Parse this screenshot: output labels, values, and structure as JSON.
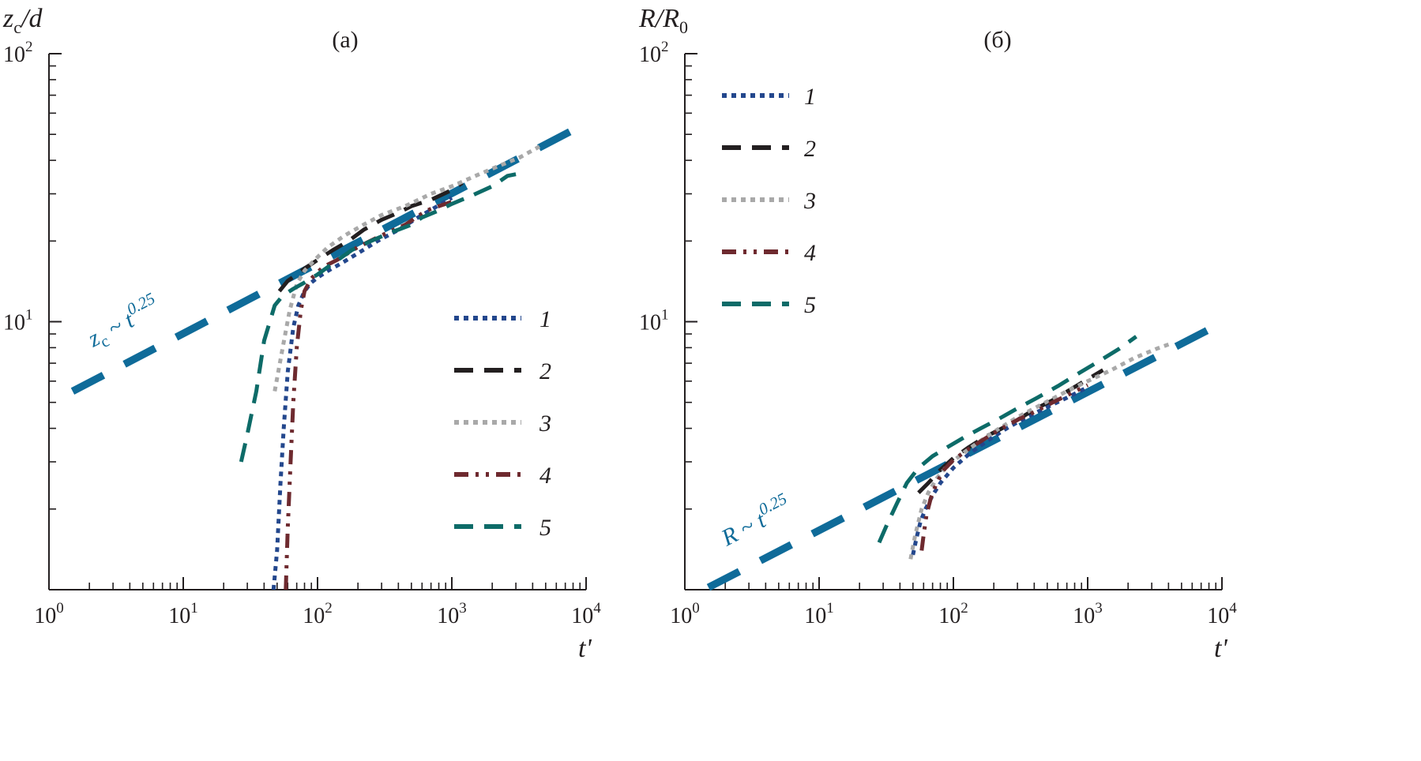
{
  "colors": {
    "axis": "#231f20",
    "1": "#23478d",
    "2": "#231f20",
    "3": "#a9a9a9",
    "4": "#6e2a2f",
    "5": "#0d6b68",
    "fit": "#0f6b99"
  },
  "chart_data": [
    {
      "type": "line",
      "panel": "(a)",
      "title": "(a)",
      "ylabel": "z_c/d",
      "xlabel": "t'",
      "xscale": "log",
      "yscale": "log",
      "xlim": [
        1,
        10000
      ],
      "ylim": [
        1,
        100
      ],
      "x_ticks": [
        {
          "base": "10",
          "exp": "0"
        },
        {
          "base": "10",
          "exp": "1"
        },
        {
          "base": "10",
          "exp": "2"
        },
        {
          "base": "10",
          "exp": "3"
        },
        {
          "base": "10",
          "exp": "4"
        }
      ],
      "y_ticks": [
        {
          "base": "10",
          "exp": "1"
        },
        {
          "base": "10",
          "exp": "2"
        }
      ],
      "legend": [
        "1",
        "2",
        "3",
        "4",
        "5"
      ],
      "annotation": {
        "text": "z",
        "sub": "c",
        "rel": " ~ t",
        "exp": "0.25"
      },
      "fit_line": {
        "law": "t^0.25",
        "x": [
          1.5,
          10000
        ],
        "y": [
          5.5,
          55
        ]
      },
      "series": [
        {
          "name": "1",
          "style": "dotted",
          "x": [
            47,
            50,
            53,
            56,
            60,
            66,
            72,
            80,
            90,
            100,
            120,
            150,
            200,
            280,
            400,
            600,
            1000
          ],
          "y": [
            1.0,
            1.4,
            2.5,
            4.0,
            6.5,
            9.5,
            11.5,
            13.0,
            14.0,
            14.6,
            15.5,
            16.5,
            18.0,
            20.0,
            22.0,
            25.0,
            29.0
          ]
        },
        {
          "name": "2",
          "style": "dashed",
          "x": [
            52,
            60,
            70,
            80,
            100,
            130,
            170,
            220,
            300,
            400,
            500,
            700,
            1000,
            1200
          ],
          "y": [
            13.0,
            14.2,
            15.0,
            15.8,
            17.0,
            18.5,
            20.0,
            22.0,
            24.0,
            25.5,
            27.0,
            28.5,
            31.0,
            33.0
          ]
        },
        {
          "name": "3",
          "style": "dotted",
          "x": [
            48,
            55,
            62,
            70,
            80,
            95,
            120,
            160,
            220,
            300,
            450,
            700,
            1000,
            1500,
            2200,
            3200,
            4500
          ],
          "y": [
            5.5,
            8.0,
            11.0,
            13.8,
            15.5,
            17.0,
            19.0,
            21.0,
            23.0,
            25.0,
            27.0,
            30.0,
            32.0,
            35.0,
            38.0,
            41.0,
            45.0
          ]
        },
        {
          "name": "4",
          "style": "dashdot",
          "x": [
            58,
            60,
            63,
            66,
            70,
            75,
            80,
            90,
            110,
            140,
            200,
            300,
            450,
            650,
            800,
            1000
          ],
          "y": [
            1.0,
            1.7,
            3.0,
            5.0,
            8.0,
            11.0,
            13.0,
            14.5,
            16.0,
            17.0,
            19.0,
            21.0,
            23.0,
            26.0,
            27.0,
            28.0
          ]
        },
        {
          "name": "5",
          "style": "dashed",
          "x": [
            27,
            30,
            35,
            40,
            48,
            55,
            65,
            80,
            100,
            130,
            180,
            250,
            350,
            500,
            600,
            800,
            1000,
            1400,
            2000,
            2600,
            3000
          ],
          "y": [
            3.0,
            3.8,
            5.5,
            8.5,
            11.5,
            12.5,
            13.2,
            14.0,
            15.0,
            16.5,
            18.5,
            20.0,
            21.5,
            23.0,
            24.5,
            26.0,
            27.5,
            29.5,
            32.0,
            35.0,
            35.5
          ]
        }
      ]
    },
    {
      "type": "line",
      "panel": "(б)",
      "title": "(б)",
      "ylabel": "R/R_0",
      "xlabel": "t'",
      "xscale": "log",
      "yscale": "log",
      "xlim": [
        1,
        10000
      ],
      "ylim": [
        1,
        100
      ],
      "x_ticks": [
        {
          "base": "10",
          "exp": "0"
        },
        {
          "base": "10",
          "exp": "1"
        },
        {
          "base": "10",
          "exp": "2"
        },
        {
          "base": "10",
          "exp": "3"
        },
        {
          "base": "10",
          "exp": "4"
        }
      ],
      "y_ticks": [
        {
          "base": "10",
          "exp": "1"
        },
        {
          "base": "10",
          "exp": "2"
        }
      ],
      "legend": [
        "1",
        "2",
        "3",
        "4",
        "5"
      ],
      "annotation": {
        "text": "R",
        "sub": "",
        "rel": " ~ t",
        "exp": "0.25"
      },
      "fit_line": {
        "law": "t^0.25",
        "x": [
          1.5,
          10000
        ],
        "y": [
          1.02,
          9.9
        ]
      },
      "series": [
        {
          "name": "1",
          "style": "dotted",
          "x": [
            50,
            53,
            57,
            62,
            70,
            80,
            100,
            130,
            180,
            250,
            350,
            500,
            700,
            1000
          ],
          "y": [
            1.35,
            1.55,
            1.8,
            2.0,
            2.25,
            2.5,
            2.85,
            3.2,
            3.6,
            4.0,
            4.4,
            4.8,
            5.2,
            5.7
          ]
        },
        {
          "name": "2",
          "style": "dashed",
          "x": [
            55,
            65,
            80,
            100,
            130,
            170,
            230,
            300,
            400,
            550,
            750,
            1000,
            1300
          ],
          "y": [
            2.3,
            2.5,
            2.8,
            3.1,
            3.4,
            3.7,
            4.0,
            4.3,
            4.7,
            5.1,
            5.6,
            6.1,
            6.6
          ]
        },
        {
          "name": "3",
          "style": "dotted",
          "x": [
            48,
            52,
            58,
            65,
            75,
            90,
            120,
            160,
            220,
            300,
            450,
            700,
            1000,
            1500,
            2200,
            3200,
            4200
          ],
          "y": [
            1.3,
            1.6,
            2.0,
            2.3,
            2.6,
            2.9,
            3.25,
            3.6,
            4.0,
            4.4,
            4.9,
            5.5,
            6.0,
            6.6,
            7.3,
            7.9,
            8.3
          ]
        },
        {
          "name": "4",
          "style": "dashdot",
          "x": [
            58,
            60,
            63,
            68,
            75,
            85,
            100,
            130,
            170,
            230,
            300,
            400,
            550,
            750,
            1000
          ],
          "y": [
            1.4,
            1.6,
            1.9,
            2.2,
            2.5,
            2.8,
            3.05,
            3.35,
            3.65,
            4.0,
            4.3,
            4.6,
            5.0,
            5.4,
            5.8
          ]
        },
        {
          "name": "5",
          "style": "dashed",
          "x": [
            28,
            32,
            38,
            45,
            55,
            70,
            90,
            120,
            160,
            220,
            300,
            420,
            600,
            850,
            1200,
            1700,
            2300
          ],
          "y": [
            1.5,
            1.75,
            2.1,
            2.5,
            2.85,
            3.15,
            3.4,
            3.7,
            4.0,
            4.35,
            4.75,
            5.2,
            5.75,
            6.4,
            7.1,
            7.9,
            8.8
          ]
        }
      ]
    }
  ]
}
